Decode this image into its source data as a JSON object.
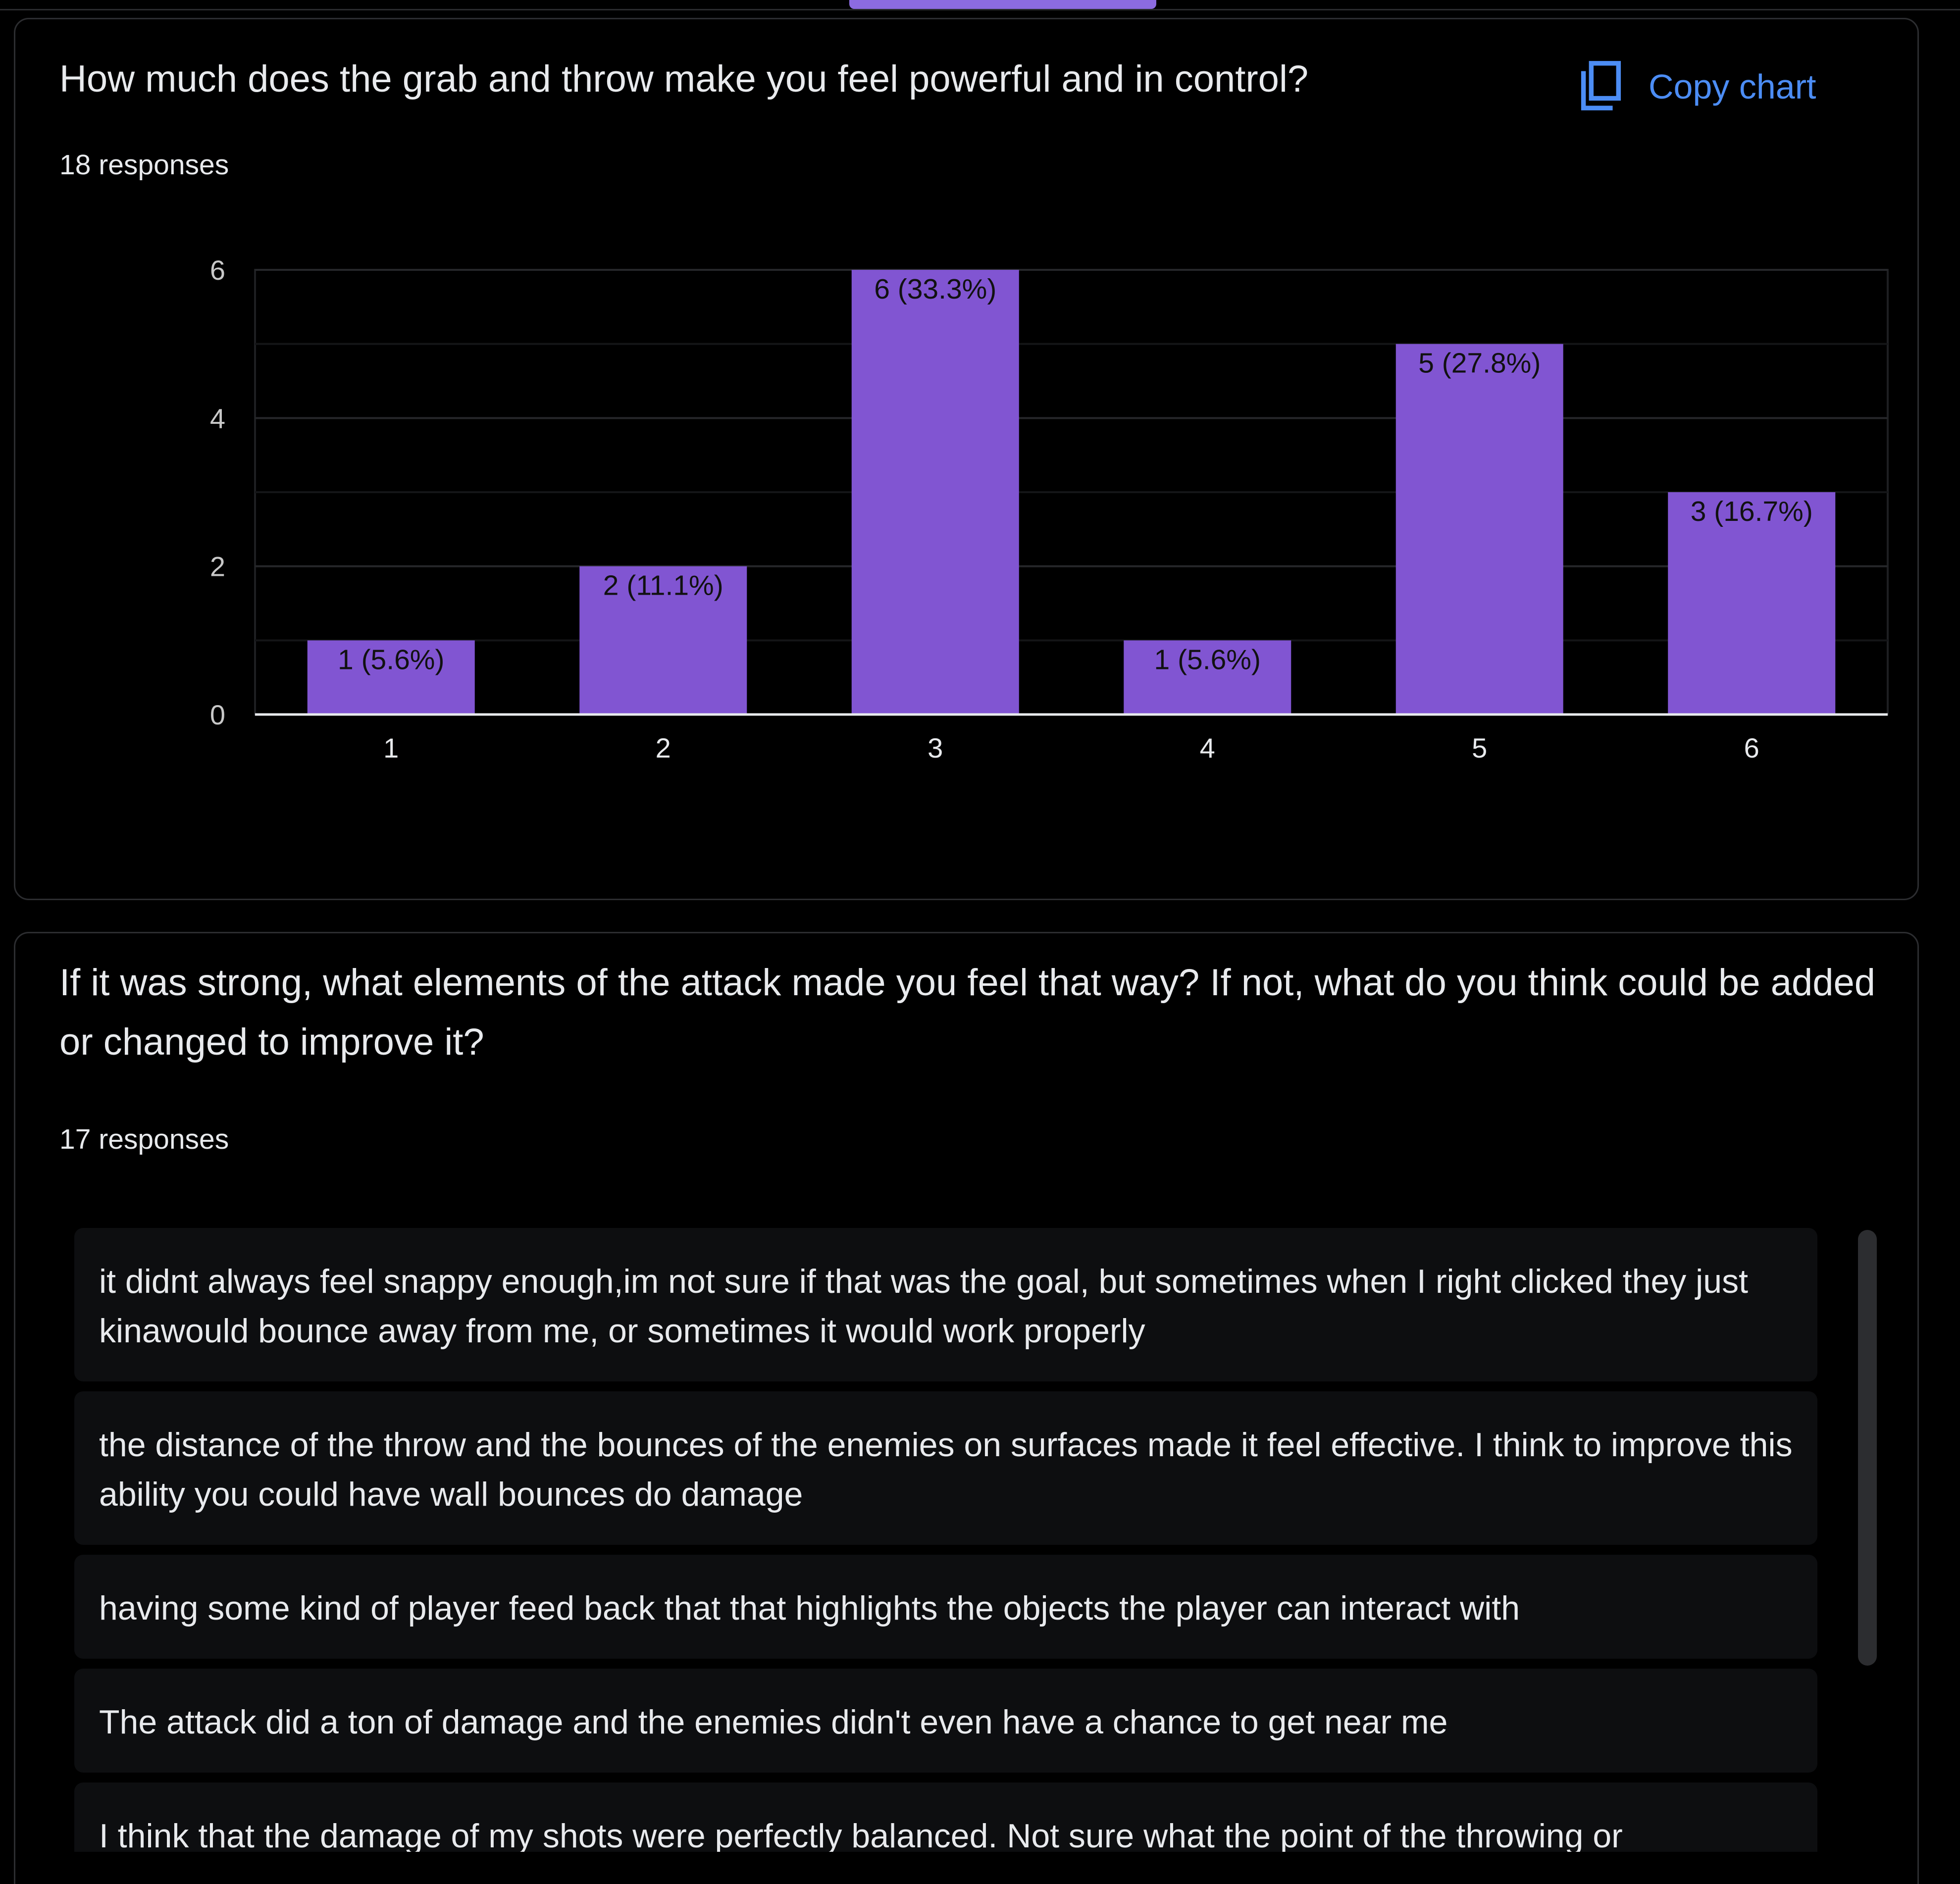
{
  "questions": [
    {
      "title": "How much does the grab and throw make you feel powerful and in control?",
      "responses": "18 responses",
      "copy_label": "Copy chart"
    },
    {
      "title": "If it was strong, what elements of the attack made you feel that way? If not, what do you think could be added or changed to improve it?",
      "responses": "17 responses",
      "answers": [
        "it didnt always feel snappy enough,im not sure if that was the goal, but sometimes when I right clicked they just kinawould bounce away from me, or sometimes it would work properly",
        "the distance of the throw and the bounces of the enemies on surfaces made it feel effective. I think to improve this ability you could have wall bounces do damage",
        "having some kind of player feed back that that highlights the objects the player can interact with",
        "The attack did a ton of damage and the enemies didn't even have a chance to get near me",
        "I think that the damage of my shots were perfectly balanced. Not sure what the point of the throwing or"
      ]
    }
  ],
  "chart_data": {
    "type": "bar",
    "categories": [
      "1",
      "2",
      "3",
      "4",
      "5",
      "6"
    ],
    "values": [
      1,
      2,
      6,
      1,
      5,
      3
    ],
    "data_labels": [
      "1 (5.6%)",
      "2 (11.1%)",
      "6 (33.3%)",
      "1 (5.6%)",
      "5 (27.8%)",
      "3 (16.7%)"
    ],
    "yticks": [
      "0",
      "2",
      "4",
      "6"
    ],
    "ylim": [
      0,
      6
    ],
    "bar_color": "#8155d2",
    "grid": true
  },
  "colors": {
    "accent": "#8c6be0",
    "link": "#4c8df5",
    "background": "#000000"
  },
  "icons": {
    "copy": "copy-icon"
  }
}
